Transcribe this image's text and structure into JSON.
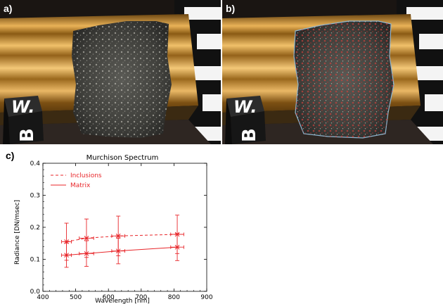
{
  "panels": {
    "a": {
      "label": "a)",
      "cube_letter_top": "W.",
      "cube_letter_side": "B"
    },
    "b": {
      "label": "b)",
      "cube_letter_top": "W.",
      "cube_letter_side": "B"
    },
    "c": {
      "label": "c)"
    }
  },
  "colors": {
    "series": "#e8262a",
    "axis": "#000000"
  },
  "chart_data": {
    "type": "line",
    "title": "Murchison Spectrum",
    "xlabel": "Wavelength [nm]",
    "ylabel": "Radiance [DN/msec]",
    "xlim": [
      400,
      900
    ],
    "ylim": [
      0.0,
      0.4
    ],
    "xticks": [
      "400",
      "500",
      "600",
      "700",
      "800",
      "900"
    ],
    "yticks": [
      "0.0",
      "0.1",
      "0.2",
      "0.3",
      "0.4"
    ],
    "legend_position": "top-left",
    "series": [
      {
        "name": "Inclusions",
        "style": "dashed",
        "x": [
          472,
          533,
          630,
          810
        ],
        "y": [
          0.155,
          0.166,
          0.173,
          0.178
        ],
        "yerr": [
          0.058,
          0.06,
          0.062,
          0.06
        ],
        "xerr": [
          15,
          22,
          20,
          20
        ]
      },
      {
        "name": "Matrix",
        "style": "solid",
        "x": [
          472,
          533,
          630,
          810
        ],
        "y": [
          0.113,
          0.118,
          0.126,
          0.138
        ],
        "yerr": [
          0.038,
          0.04,
          0.04,
          0.042
        ],
        "xerr": [
          15,
          22,
          20,
          20
        ]
      }
    ]
  }
}
